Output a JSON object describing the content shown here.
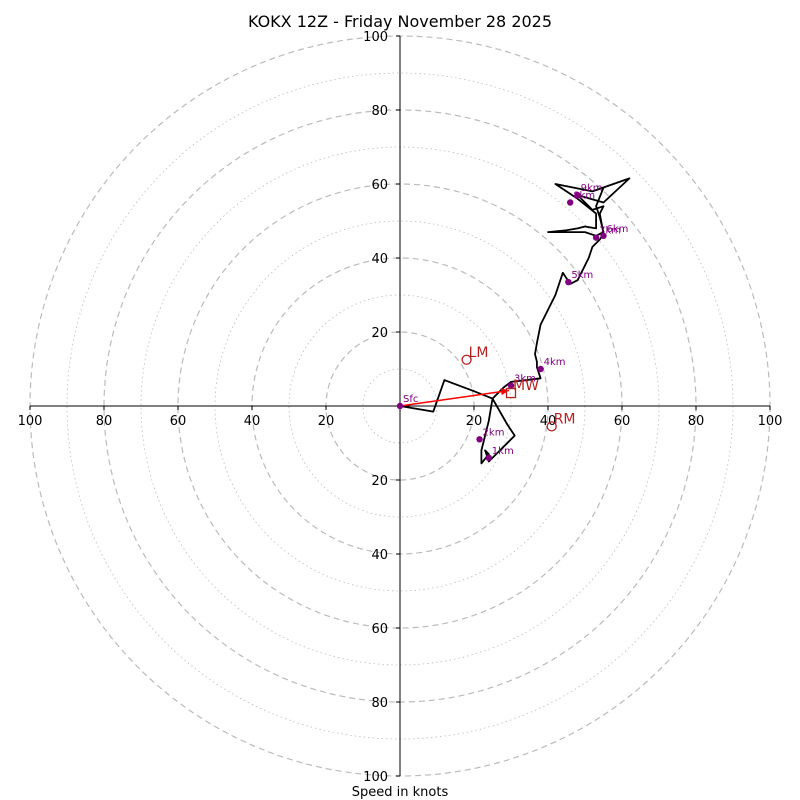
{
  "chart_data": {
    "type": "hodograph",
    "title": "KOKX 12Z - Friday November 28 2025",
    "xlabel": "Speed in knots",
    "max_speed": 100,
    "ring_step": 10,
    "labeled_rings": [
      20,
      40,
      60,
      80,
      100
    ],
    "tick_labels": {
      "left": [
        "100",
        "80",
        "60",
        "40",
        "20"
      ],
      "right": [
        "20",
        "40",
        "60",
        "80",
        "100"
      ],
      "top": [
        "20",
        "40",
        "60",
        "80",
        "100"
      ],
      "bottom": [
        "20",
        "40",
        "60",
        "80",
        "100"
      ]
    },
    "hodograph": {
      "units": "knots (u east, v north)",
      "line_color": "#000000",
      "points": [
        [
          0,
          0
        ],
        [
          9,
          -1.5
        ],
        [
          12,
          7
        ],
        [
          20,
          4
        ],
        [
          25,
          2
        ],
        [
          28,
          5
        ],
        [
          30,
          6.5
        ],
        [
          38,
          7.5
        ],
        [
          37,
          10.5
        ],
        [
          37,
          12
        ],
        [
          36.5,
          14
        ],
        [
          37,
          17
        ],
        [
          38,
          22
        ],
        [
          42,
          30
        ],
        [
          44,
          36
        ],
        [
          46,
          33
        ],
        [
          48,
          34
        ],
        [
          51,
          40
        ],
        [
          52,
          43
        ],
        [
          54,
          45
        ],
        [
          55,
          46.5
        ],
        [
          54,
          52
        ],
        [
          55,
          54
        ],
        [
          52,
          53
        ],
        [
          48,
          57
        ],
        [
          55,
          55
        ],
        [
          62,
          61.5
        ],
        [
          52,
          58
        ],
        [
          42,
          60
        ],
        [
          48,
          56
        ],
        [
          53,
          52
        ],
        [
          53,
          48
        ],
        [
          50,
          48.5
        ],
        [
          48,
          48
        ],
        [
          45,
          47.5
        ],
        [
          40,
          47
        ],
        [
          50,
          47
        ],
        [
          53,
          46
        ],
        [
          55,
          47
        ],
        [
          54,
          51
        ],
        [
          53,
          54
        ],
        [
          55,
          59
        ]
      ],
      "low_points": [
        [
          25,
          2
        ],
        [
          29,
          -5
        ],
        [
          31,
          -8
        ],
        [
          24,
          -15
        ],
        [
          23,
          -12
        ],
        [
          24,
          -13
        ],
        [
          22,
          -15.5
        ],
        [
          22,
          -12
        ],
        [
          23,
          -8
        ],
        [
          24,
          -4
        ],
        [
          25,
          2
        ]
      ]
    },
    "height_markers": [
      {
        "label": "Sfc",
        "u": 0,
        "v": 0
      },
      {
        "label": "1km",
        "u": 24,
        "v": -14
      },
      {
        "label": "2km",
        "u": 21.5,
        "v": -9
      },
      {
        "label": "3km",
        "u": 30,
        "v": 5.5
      },
      {
        "label": "4km",
        "u": 38,
        "v": 10
      },
      {
        "label": "5km",
        "u": 45.5,
        "v": 33.5
      },
      {
        "label": "6km",
        "u": 55,
        "v": 46
      },
      {
        "label": "7km",
        "u": 53,
        "v": 45.5
      },
      {
        "label": "8km",
        "u": 46,
        "v": 55
      },
      {
        "label": "9km",
        "u": 48,
        "v": 57
      }
    ],
    "storm_motion": [
      {
        "label": "LM",
        "u": 18,
        "v": 12.5,
        "marker": "circle"
      },
      {
        "label": "RM",
        "u": 41,
        "v": -5.5,
        "marker": "circle"
      },
      {
        "label": "MW",
        "u": 30,
        "v": 3.5,
        "marker": "square"
      }
    ],
    "shear_vector": {
      "from": [
        0,
        0
      ],
      "to": [
        29.5,
        4.2
      ],
      "color": "#ff0000"
    },
    "colors": {
      "height_marker": "#800080",
      "storm_motion": "#b22222",
      "grid": "#bbbbbb"
    }
  }
}
